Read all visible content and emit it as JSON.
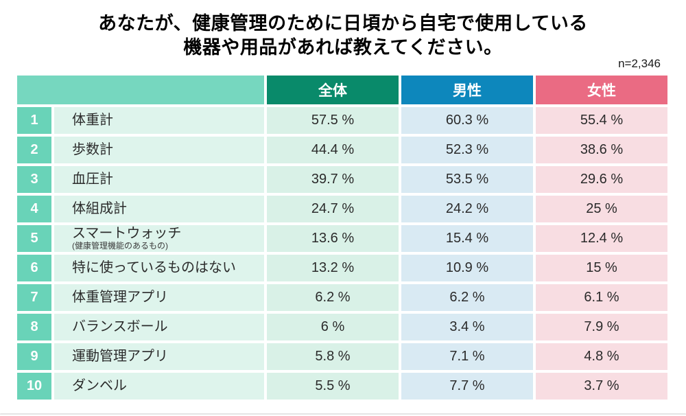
{
  "title": {
    "line1": "あなたが、健康管理のために日頃から自宅で使用している",
    "line2": "機器や用品があれば教えてください。"
  },
  "sample_size": "n=2,346",
  "colors": {
    "header_blank": "#76d7bf",
    "header_all": "#098a6a",
    "header_male": "#0d87bc",
    "header_female": "#ea6b83",
    "rank_cell": "#69d3b8",
    "item_cell": "#def4ec",
    "value_all_cell": "#d9f1e7",
    "value_male_cell": "#d9eaf3",
    "value_female_cell": "#f8dde2"
  },
  "table": {
    "headers": {
      "all": "全体",
      "male": "男性",
      "female": "女性"
    },
    "rows": [
      {
        "rank": "1",
        "label": "体重計",
        "values": [
          "57.5 %",
          "60.3 %",
          "55.4 %"
        ]
      },
      {
        "rank": "2",
        "label": "歩数計",
        "values": [
          "44.4 %",
          "52.3 %",
          "38.6 %"
        ]
      },
      {
        "rank": "3",
        "label": "血圧計",
        "values": [
          "39.7 %",
          "53.5 %",
          "29.6 %"
        ]
      },
      {
        "rank": "4",
        "label": "体組成計",
        "values": [
          "24.7 %",
          "24.2 %",
          "25 %"
        ]
      },
      {
        "rank": "5",
        "label": "スマートウォッチ",
        "sublabel": "(健康管理機能のあるもの)",
        "values": [
          "13.6 %",
          "15.4 %",
          "12.4 %"
        ]
      },
      {
        "rank": "6",
        "label": "特に使っているものはない",
        "values": [
          "13.2 %",
          "10.9 %",
          "15 %"
        ]
      },
      {
        "rank": "7",
        "label": "体重管理アプリ",
        "values": [
          "6.2 %",
          "6.2 %",
          "6.1 %"
        ]
      },
      {
        "rank": "8",
        "label": "バランスボール",
        "values": [
          "6 %",
          "3.4 %",
          "7.9 %"
        ]
      },
      {
        "rank": "9",
        "label": "運動管理アプリ",
        "values": [
          "5.8 %",
          "7.1 %",
          "4.8 %"
        ]
      },
      {
        "rank": "10",
        "label": "ダンベル",
        "values": [
          "5.5 %",
          "7.7 %",
          "3.7 %"
        ]
      }
    ]
  },
  "chart_data": {
    "type": "table",
    "title": "あなたが、健康管理のために日頃から自宅で使用している機器や用品があれば教えてください。",
    "sample_size": "n=2,346",
    "unit": "%",
    "categories": [
      "体重計",
      "歩数計",
      "血圧計",
      "体組成計",
      "スマートウォッチ(健康管理機能のあるもの)",
      "特に使っているものはない",
      "体重管理アプリ",
      "バランスボール",
      "運動管理アプリ",
      "ダンベル"
    ],
    "series": [
      {
        "name": "全体",
        "values": [
          57.5,
          44.4,
          39.7,
          24.7,
          13.6,
          13.2,
          6.2,
          6,
          5.8,
          5.5
        ]
      },
      {
        "name": "男性",
        "values": [
          60.3,
          52.3,
          53.5,
          24.2,
          15.4,
          10.9,
          6.2,
          3.4,
          7.1,
          7.7
        ]
      },
      {
        "name": "女性",
        "values": [
          55.4,
          38.6,
          29.6,
          25,
          12.4,
          15,
          6.1,
          7.9,
          4.8,
          3.7
        ]
      }
    ]
  }
}
